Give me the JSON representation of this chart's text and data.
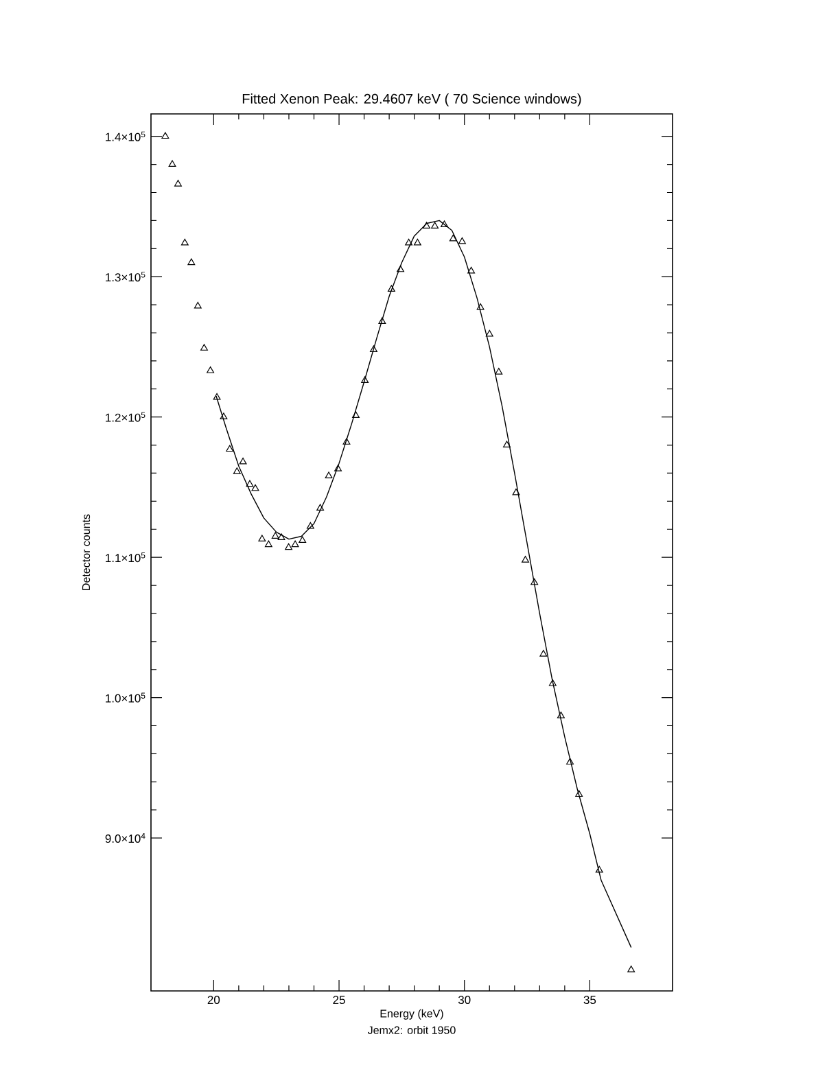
{
  "chart_data": {
    "type": "scatter",
    "title": "Fitted Xenon Peak:       29.4607 keV (      70 Science windows)",
    "xlabel": "Energy (keV)",
    "ylabel": "Detector counts",
    "annotations": [
      "Jemx2: orbit 1950"
    ],
    "xlim": [
      17.5,
      38.3
    ],
    "ylim": [
      79100,
      141600
    ],
    "xticks": [
      20,
      25,
      30,
      35
    ],
    "yticks": [
      {
        "value": 90000,
        "label": "9.0×10$^{4}$"
      },
      {
        "value": 100000,
        "label": "1.0×10$^{5}$"
      },
      {
        "value": 110000,
        "label": "1.1×10$^{5}$"
      },
      {
        "value": 120000,
        "label": "1.2×10$^{5}$"
      },
      {
        "value": 130000,
        "label": "1.3×10$^{5}$"
      },
      {
        "value": 140000,
        "label": "1.4×10$^{5}$"
      }
    ],
    "series": [
      {
        "marker": "triangle",
        "color": "#000000",
        "x": [
          18.07,
          18.35,
          18.58,
          18.85,
          19.11,
          19.37,
          19.62,
          19.87,
          20.13,
          20.4,
          20.64,
          20.93,
          21.17,
          21.44,
          21.66,
          21.93,
          22.19,
          22.46,
          22.7,
          22.99,
          23.25,
          23.54,
          23.86,
          24.25,
          24.59,
          24.96,
          25.3,
          25.67,
          26.03,
          26.38,
          26.72,
          27.09,
          27.45,
          27.78,
          28.13,
          28.49,
          28.82,
          29.2,
          29.55,
          29.91,
          30.27,
          30.64,
          31.0,
          31.37,
          31.69,
          32.06,
          32.43,
          32.79,
          33.15,
          33.52,
          33.85,
          34.21,
          34.57,
          35.38,
          36.65
        ],
        "values": [
          140000,
          138000,
          136600,
          132400,
          131000,
          127900,
          124900,
          123300,
          121400,
          120000,
          117700,
          116100,
          116800,
          115200,
          114900,
          111300,
          110900,
          111500,
          111400,
          110700,
          110900,
          111200,
          112200,
          113500,
          115800,
          116300,
          118200,
          120100,
          122600,
          124800,
          126800,
          129100,
          130500,
          132400,
          132400,
          133600,
          133600,
          133700,
          132700,
          132500,
          130400,
          127800,
          125900,
          123200,
          118000,
          114600,
          109800,
          108200,
          103100,
          101000,
          98700,
          95400,
          93100,
          87700,
          80600
        ]
      },
      {
        "type": "line",
        "marker": "none",
        "color": "#000000",
        "x": [
          20.1,
          20.5,
          21.0,
          21.5,
          22.0,
          22.5,
          23.0,
          23.5,
          24.0,
          24.5,
          25.0,
          25.5,
          26.0,
          26.5,
          27.0,
          27.5,
          28.0,
          28.5,
          29.0,
          29.5,
          30.0,
          30.5,
          31.0,
          31.5,
          32.0,
          32.5,
          33.0,
          33.5,
          34.0,
          34.5,
          35.0,
          35.45,
          36.65
        ],
        "values": [
          121500,
          119200,
          116500,
          114500,
          112800,
          111800,
          111300,
          111500,
          112400,
          114300,
          116700,
          119500,
          122500,
          125600,
          128600,
          131000,
          132900,
          133800,
          134000,
          133300,
          131400,
          128500,
          125000,
          120800,
          116000,
          111000,
          106000,
          101300,
          97200,
          93500,
          90300,
          87000,
          82200
        ]
      }
    ]
  }
}
